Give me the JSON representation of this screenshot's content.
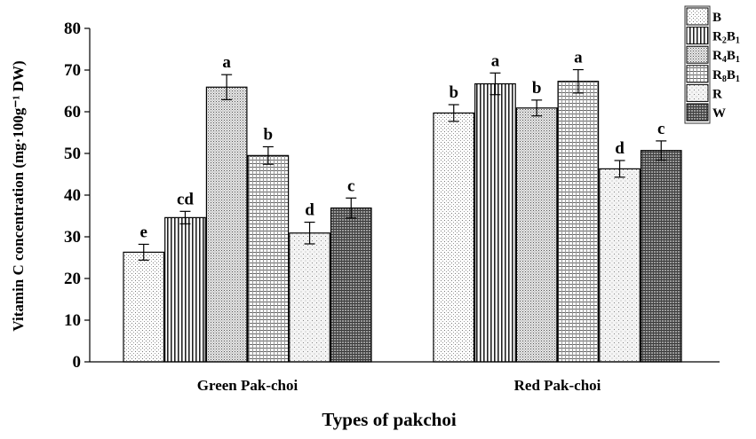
{
  "chart_data": {
    "type": "bar",
    "categories": [
      "Green Pak-choi",
      "Red Pak-choi"
    ],
    "xlabel": "Types of pakchoi",
    "ylabel": "Vitamin C concentration (mg·100g⁻¹ DW)",
    "ylim": [
      0,
      80
    ],
    "yticks": [
      "0",
      "10",
      "20",
      "30",
      "40",
      "50",
      "60",
      "70",
      "80"
    ],
    "grid": false,
    "legend_position": "top-right",
    "series": [
      {
        "name": "B",
        "name_main": "B",
        "sub1": "",
        "name_mid": "",
        "sub2": "",
        "values": [
          26.3,
          59.7
        ],
        "errors": [
          1.9,
          2.0
        ],
        "sig": [
          "e",
          "b"
        ],
        "pattern": "dots-fine"
      },
      {
        "name": "R2B1",
        "name_main": "R",
        "sub1": "2",
        "name_mid": "B",
        "sub2": "1",
        "values": [
          34.6,
          66.7
        ],
        "errors": [
          1.5,
          2.6
        ],
        "sig": [
          "cd",
          "a"
        ],
        "pattern": "vertical-lines"
      },
      {
        "name": "R4B1",
        "name_main": "R",
        "sub1": "4",
        "name_mid": "B",
        "sub2": "1",
        "values": [
          65.9,
          60.9
        ],
        "errors": [
          3.0,
          1.9
        ],
        "sig": [
          "a",
          "b"
        ],
        "pattern": "dots-dense"
      },
      {
        "name": "R8B1",
        "name_main": "R",
        "sub1": "8",
        "name_mid": "B",
        "sub2": "1",
        "values": [
          49.5,
          67.3
        ],
        "errors": [
          2.1,
          2.8
        ],
        "sig": [
          "b",
          "a"
        ],
        "pattern": "grid-fine"
      },
      {
        "name": "R",
        "name_main": "R",
        "sub1": "",
        "name_mid": "",
        "sub2": "",
        "values": [
          30.9,
          46.3
        ],
        "errors": [
          2.6,
          2.0
        ],
        "sig": [
          "d",
          "d"
        ],
        "pattern": "dots-sparse"
      },
      {
        "name": "W",
        "name_main": "W",
        "sub1": "",
        "name_mid": "",
        "sub2": "",
        "values": [
          36.9,
          50.7
        ],
        "errors": [
          2.4,
          2.3
        ],
        "sig": [
          "c",
          "c"
        ],
        "pattern": "crosshatch-dark"
      }
    ]
  }
}
